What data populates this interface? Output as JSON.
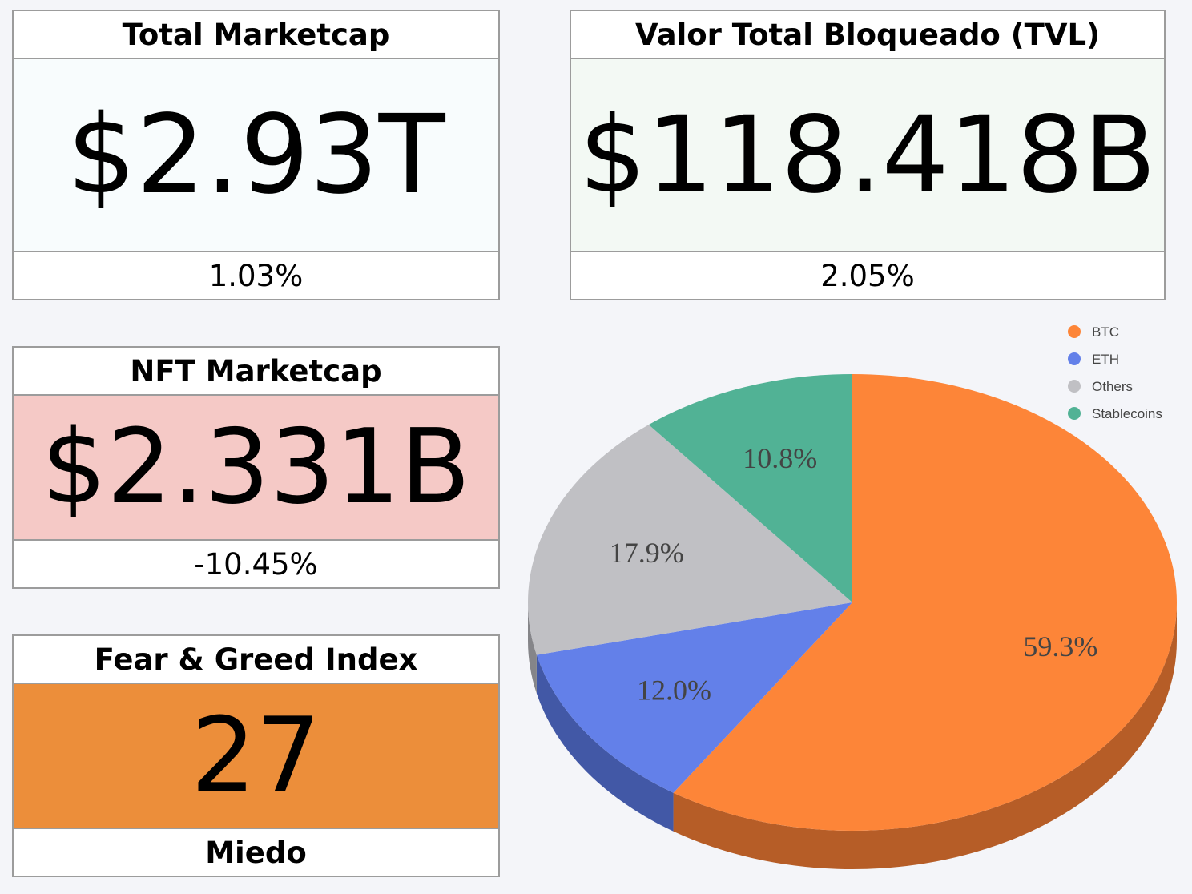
{
  "cards": {
    "total_marketcap": {
      "title": "Total Marketcap",
      "value": "$2.93T",
      "change": "1.03%",
      "bg": "#f8fcfd"
    },
    "tvl": {
      "title": "Valor Total Bloqueado (TVL)",
      "value": "$118.418B",
      "change": "2.05%",
      "bg": "#f3f9f4"
    },
    "nft_marketcap": {
      "title": "NFT Marketcap",
      "value": "$2.331B",
      "change": "-10.45%",
      "bg": "#f5c9c6"
    },
    "fear_greed": {
      "title": "Fear & Greed Index",
      "value": "27",
      "label": "Miedo",
      "bg": "#ec8e3a"
    }
  },
  "chart_data": {
    "type": "pie",
    "title": "",
    "legend_position": "top-right",
    "slices": [
      {
        "name": "BTC",
        "value": 59.3,
        "label": "59.3%",
        "color": "#fd8538",
        "side_color": "#b65d27"
      },
      {
        "name": "ETH",
        "value": 12.0,
        "label": "12.0%",
        "color": "#6380e9",
        "side_color": "#4258a6"
      },
      {
        "name": "Others",
        "value": 17.9,
        "label": "17.9%",
        "color": "#c0c0c4",
        "side_color": "#858589"
      },
      {
        "name": "Stablecoins",
        "value": 10.8,
        "label": "10.8%",
        "color": "#51b295",
        "side_color": "#377d68"
      }
    ]
  }
}
